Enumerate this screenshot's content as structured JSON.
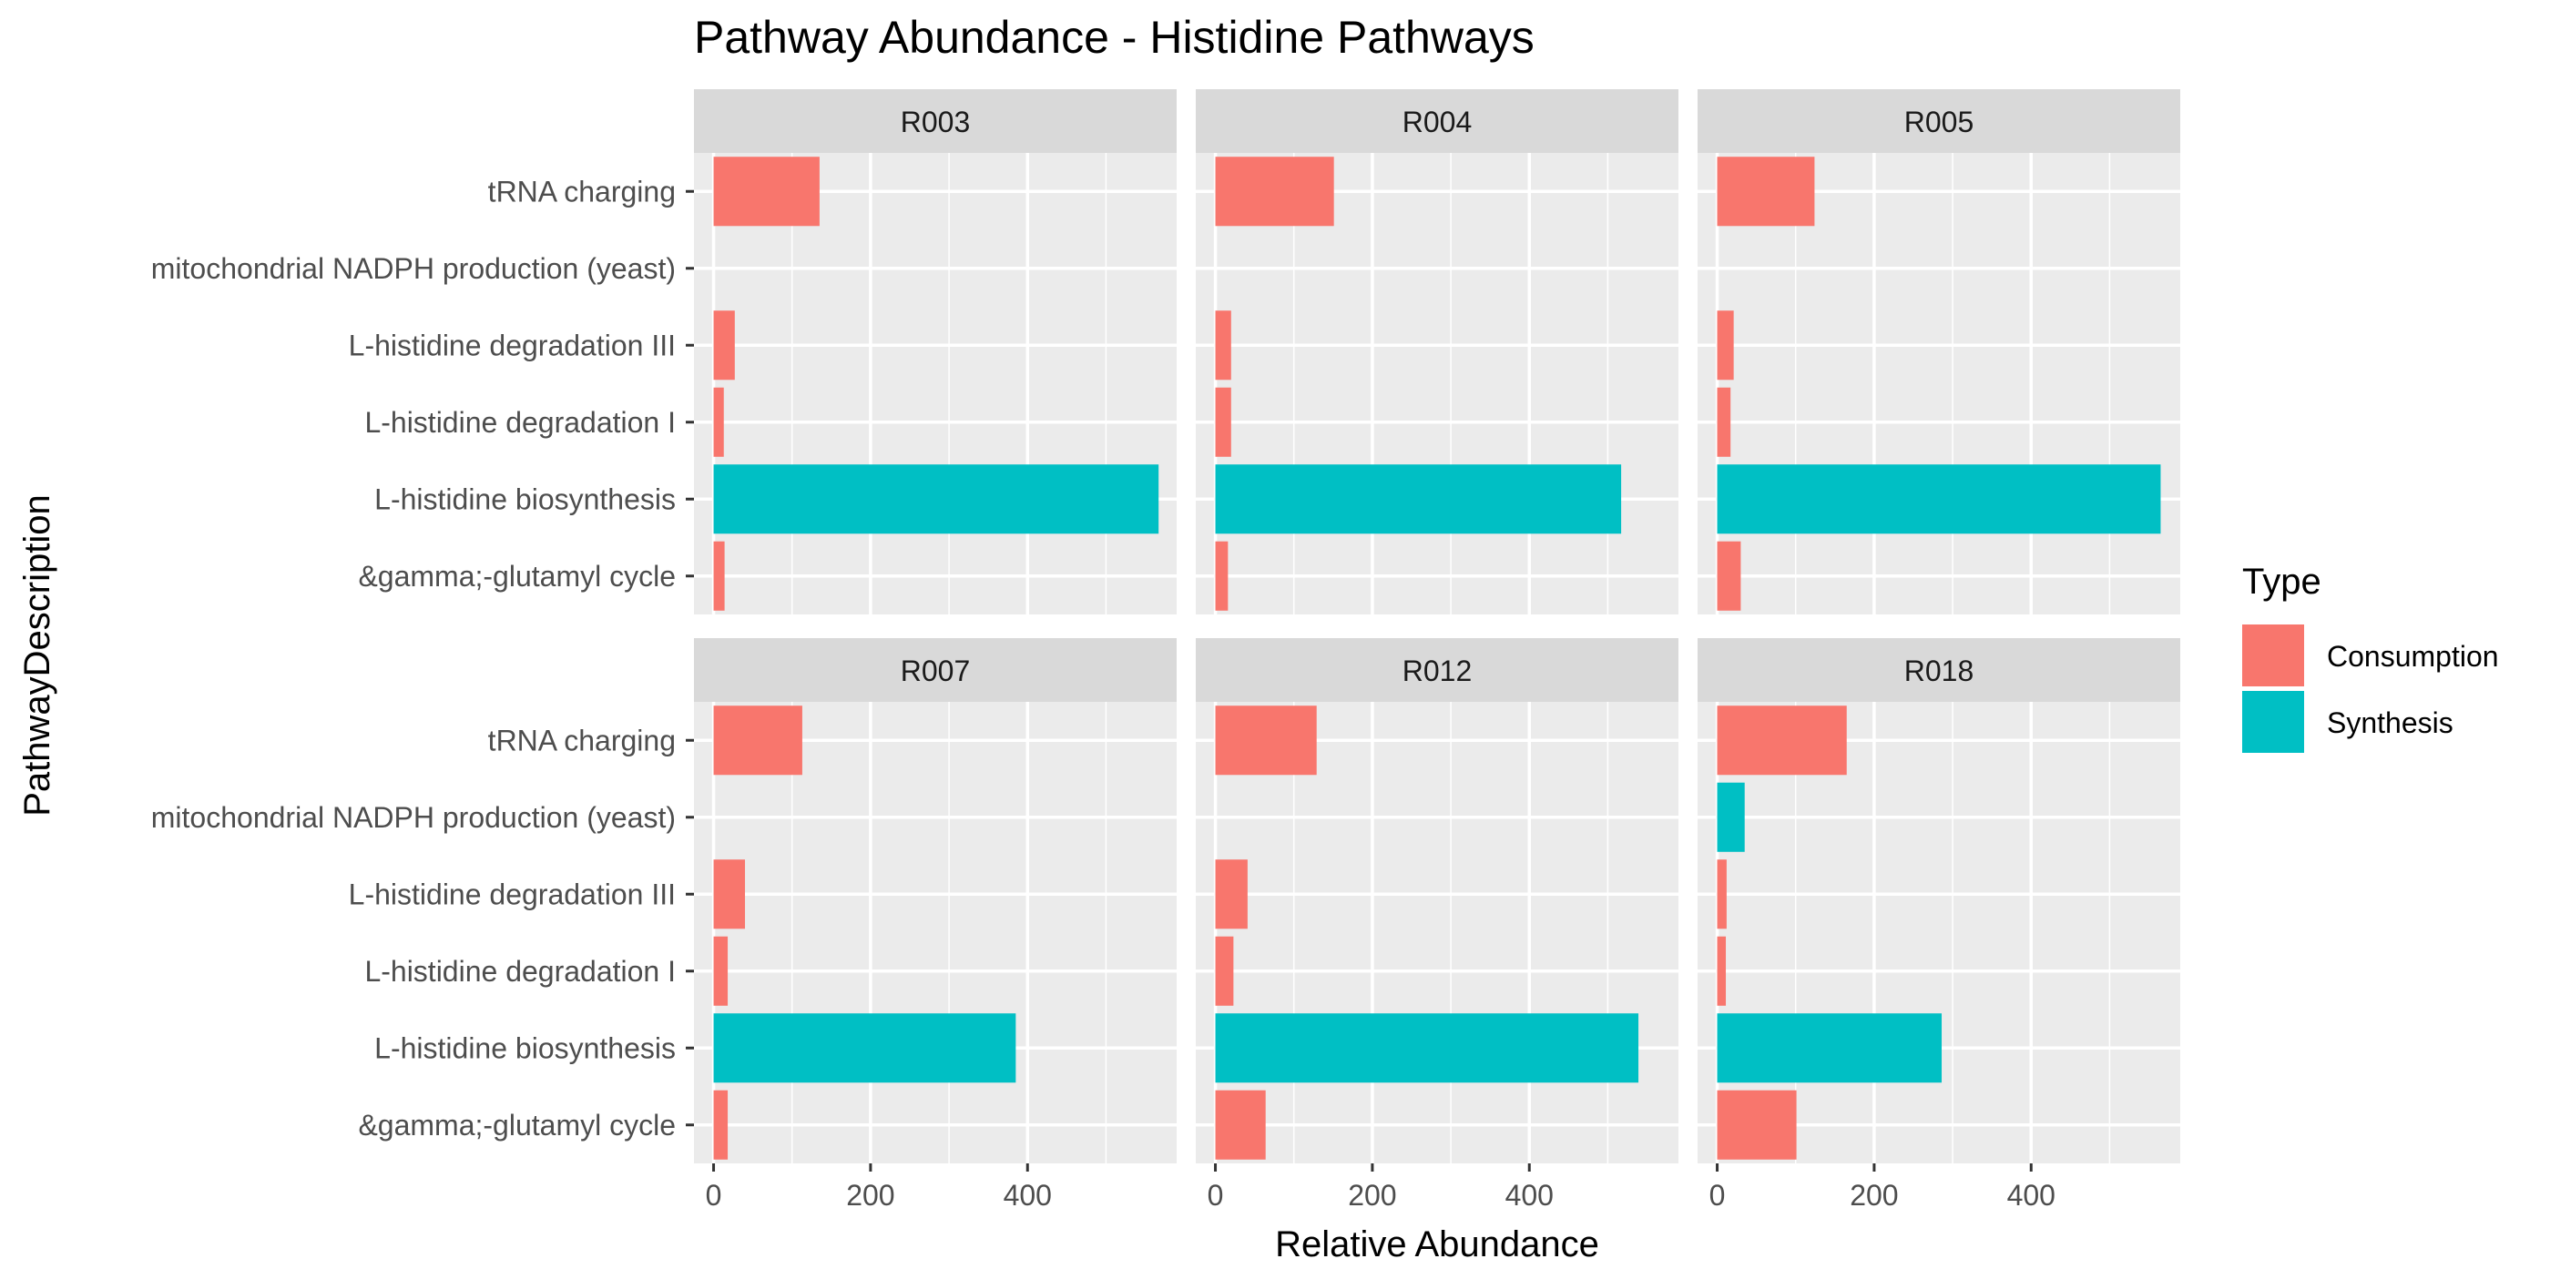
{
  "chart_data": {
    "type": "bar",
    "orientation": "horizontal",
    "title": "Pathway Abundance - Histidine Pathways",
    "xlabel": "Relative Abundance",
    "ylabel": "PathwayDescription",
    "xlim": [
      -25,
      590
    ],
    "x_ticks": [
      0,
      200,
      400
    ],
    "grid": true,
    "categories": [
      "tRNA charging",
      "mitochondrial NADPH production (yeast)",
      "L-histidine degradation III",
      "L-histidine degradation I",
      "L-histidine biosynthesis",
      "&gamma;-glutamyl cycle"
    ],
    "legend": {
      "title": "Type",
      "position": "right",
      "entries": [
        {
          "name": "Consumption",
          "color": "#F8766D"
        },
        {
          "name": "Synthesis",
          "color": "#00BFC4"
        }
      ]
    },
    "panels": [
      {
        "name": "R003",
        "bars": [
          {
            "category": "tRNA charging",
            "type": "Consumption",
            "value": 135
          },
          {
            "category": "mitochondrial NADPH production (yeast)",
            "type": "Synthesis",
            "value": 0
          },
          {
            "category": "L-histidine degradation III",
            "type": "Consumption",
            "value": 27
          },
          {
            "category": "L-histidine degradation I",
            "type": "Consumption",
            "value": 13
          },
          {
            "category": "L-histidine biosynthesis",
            "type": "Synthesis",
            "value": 567
          },
          {
            "category": "&gamma;-glutamyl cycle",
            "type": "Consumption",
            "value": 14
          }
        ]
      },
      {
        "name": "R004",
        "bars": [
          {
            "category": "tRNA charging",
            "type": "Consumption",
            "value": 151
          },
          {
            "category": "mitochondrial NADPH production (yeast)",
            "type": "Synthesis",
            "value": 0
          },
          {
            "category": "L-histidine degradation III",
            "type": "Consumption",
            "value": 20
          },
          {
            "category": "L-histidine degradation I",
            "type": "Consumption",
            "value": 20
          },
          {
            "category": "L-histidine biosynthesis",
            "type": "Synthesis",
            "value": 517
          },
          {
            "category": "&gamma;-glutamyl cycle",
            "type": "Consumption",
            "value": 16
          }
        ]
      },
      {
        "name": "R005",
        "bars": [
          {
            "category": "tRNA charging",
            "type": "Consumption",
            "value": 124
          },
          {
            "category": "mitochondrial NADPH production (yeast)",
            "type": "Synthesis",
            "value": 0
          },
          {
            "category": "L-histidine degradation III",
            "type": "Consumption",
            "value": 21
          },
          {
            "category": "L-histidine degradation I",
            "type": "Consumption",
            "value": 17
          },
          {
            "category": "L-histidine biosynthesis",
            "type": "Synthesis",
            "value": 565
          },
          {
            "category": "&gamma;-glutamyl cycle",
            "type": "Consumption",
            "value": 30
          }
        ]
      },
      {
        "name": "R007",
        "bars": [
          {
            "category": "tRNA charging",
            "type": "Consumption",
            "value": 113
          },
          {
            "category": "mitochondrial NADPH production (yeast)",
            "type": "Synthesis",
            "value": 0
          },
          {
            "category": "L-histidine degradation III",
            "type": "Consumption",
            "value": 40
          },
          {
            "category": "L-histidine degradation I",
            "type": "Consumption",
            "value": 18
          },
          {
            "category": "L-histidine biosynthesis",
            "type": "Synthesis",
            "value": 385
          },
          {
            "category": "&gamma;-glutamyl cycle",
            "type": "Consumption",
            "value": 18
          }
        ]
      },
      {
        "name": "R012",
        "bars": [
          {
            "category": "tRNA charging",
            "type": "Consumption",
            "value": 129
          },
          {
            "category": "mitochondrial NADPH production (yeast)",
            "type": "Synthesis",
            "value": 0
          },
          {
            "category": "L-histidine degradation III",
            "type": "Consumption",
            "value": 41
          },
          {
            "category": "L-histidine degradation I",
            "type": "Consumption",
            "value": 23
          },
          {
            "category": "L-histidine biosynthesis",
            "type": "Synthesis",
            "value": 539
          },
          {
            "category": "&gamma;-glutamyl cycle",
            "type": "Consumption",
            "value": 64
          }
        ]
      },
      {
        "name": "R018",
        "bars": [
          {
            "category": "tRNA charging",
            "type": "Consumption",
            "value": 165
          },
          {
            "category": "mitochondrial NADPH production (yeast)",
            "type": "Synthesis",
            "value": 35
          },
          {
            "category": "L-histidine degradation III",
            "type": "Consumption",
            "value": 12
          },
          {
            "category": "L-histidine degradation I",
            "type": "Consumption",
            "value": 11
          },
          {
            "category": "L-histidine biosynthesis",
            "type": "Synthesis",
            "value": 286
          },
          {
            "category": "&gamma;-glutamyl cycle",
            "type": "Consumption",
            "value": 101
          }
        ]
      }
    ]
  }
}
